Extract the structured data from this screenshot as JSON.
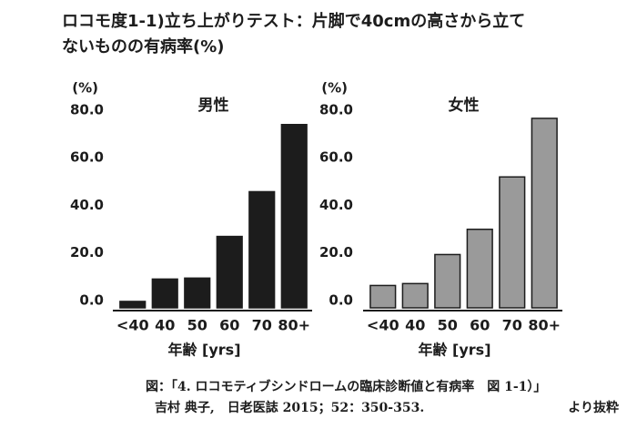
{
  "title": [
    "ロコモ度1-1)立ち上がりテスト：片脚で40cmの高さから立て",
    "ないものの有病率(%)"
  ],
  "chart_data": [
    {
      "type": "bar",
      "title": "男性",
      "y_label": "(%)",
      "x_label": "年齢 [yrs]",
      "categories": [
        "<40",
        "40",
        "50",
        "60",
        "70",
        "80+"
      ],
      "values": [
        2.7,
        12.1,
        12.5,
        30,
        48.8,
        77
      ],
      "color": "#1c1c1c",
      "edge_color": "#1c1c1c",
      "ylim": [
        0,
        88
      ],
      "yticks": [
        {
          "value": 0,
          "label": "0.0"
        },
        {
          "value": 20,
          "label": "20.0"
        },
        {
          "value": 40,
          "label": "40.0"
        },
        {
          "value": 60,
          "label": "60.0"
        },
        {
          "value": 80,
          "label": "80.0"
        }
      ]
    },
    {
      "type": "bar",
      "title": "女性",
      "y_label": "(%)",
      "x_label": "年齢 [yrs]",
      "categories": [
        "<40",
        "40",
        "50",
        "60",
        "70",
        "80+"
      ],
      "values": [
        9.4,
        10.2,
        22.4,
        33,
        55,
        79.6
      ],
      "color": "#9a9a9a",
      "edge_color": "#1c1c1c",
      "ylim": [
        0,
        88
      ],
      "yticks": [
        {
          "value": 0,
          "label": "0.0"
        },
        {
          "value": 20,
          "label": "20.0"
        },
        {
          "value": 40,
          "label": "40.0"
        },
        {
          "value": 60,
          "label": "60.0"
        },
        {
          "value": 80,
          "label": "80.0"
        }
      ]
    }
  ],
  "caption": {
    "line1": "図：「4. ロコモティブシンドロームの臨床診断値と有病率　図 1-1）」",
    "line2": "吉村 典子,　日老医誌 2015；52：350-353.",
    "note": "より抜粋"
  }
}
